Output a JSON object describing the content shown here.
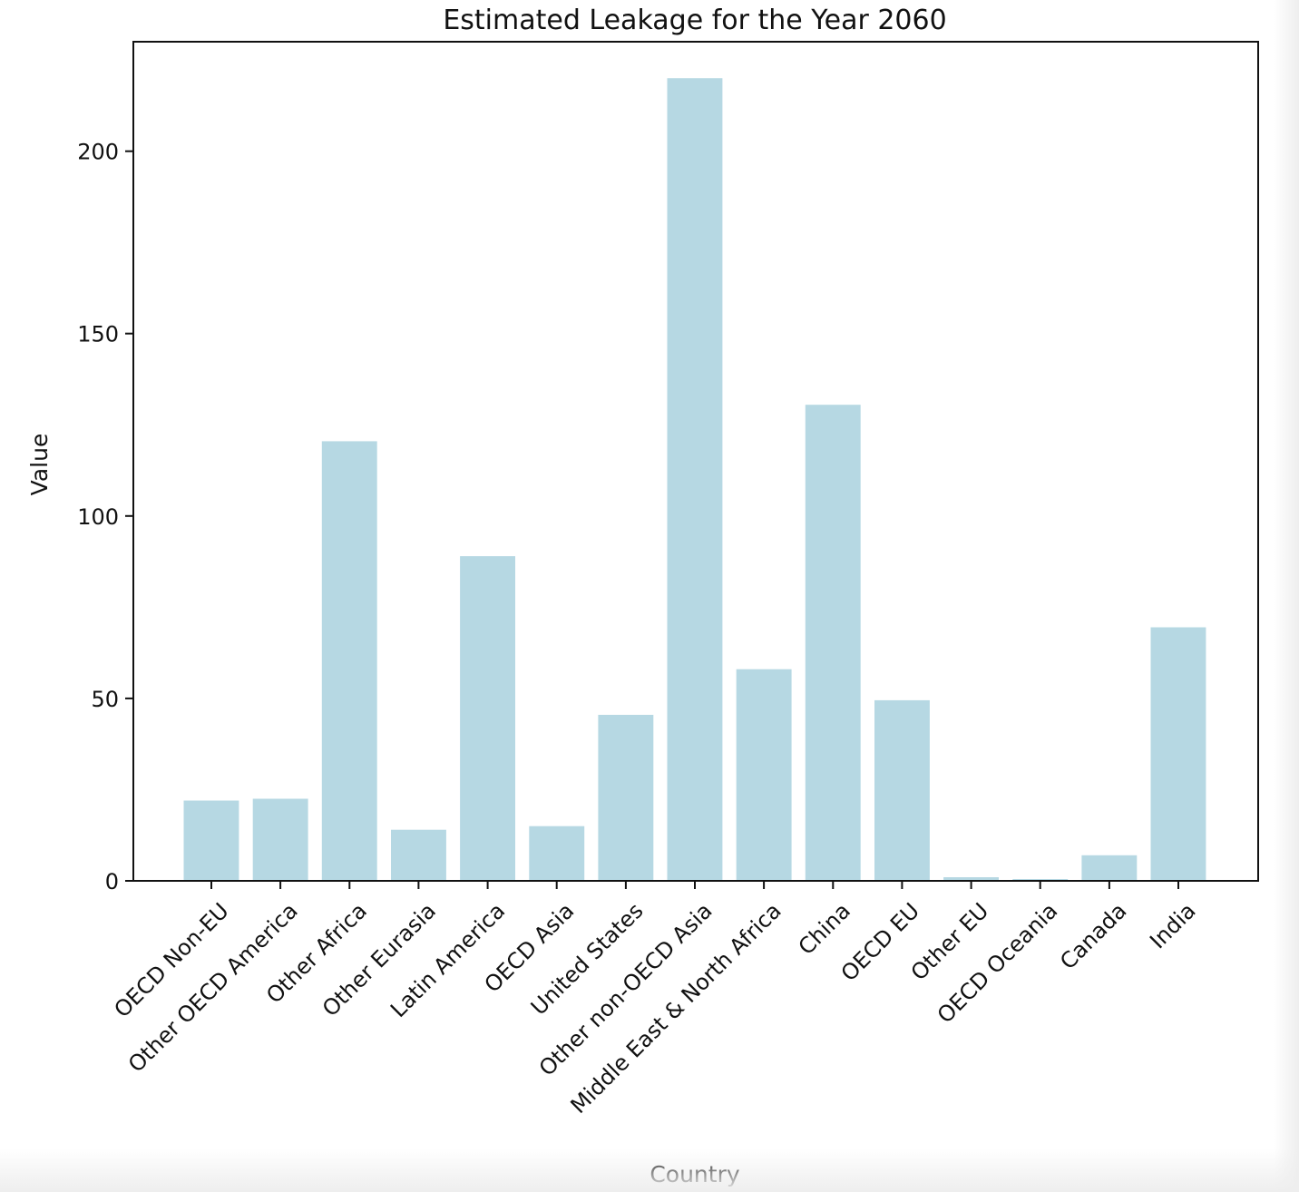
{
  "chart_data": {
    "type": "bar",
    "title": "Estimated Leakage for the Year 2060",
    "xlabel": "Country",
    "ylabel": "Value",
    "categories": [
      "OECD Non-EU",
      "Other OECD America",
      "Other Africa",
      "Other Eurasia",
      "Latin America",
      "OECD Asia",
      "United States",
      "Other non-OECD Asia",
      "Middle East & North Africa",
      "China",
      "OECD EU",
      "Other EU",
      "OECD Oceania",
      "Canada",
      "India"
    ],
    "values": [
      22,
      22.5,
      120.5,
      14,
      89,
      15,
      45.5,
      220,
      58,
      130.5,
      49.5,
      1,
      0.5,
      7,
      69.5
    ],
    "ylim": [
      0,
      230
    ],
    "yticks": [
      0,
      50,
      100,
      150,
      200
    ],
    "bar_color": "#b6d8e3",
    "grid": false,
    "legend": "none"
  }
}
